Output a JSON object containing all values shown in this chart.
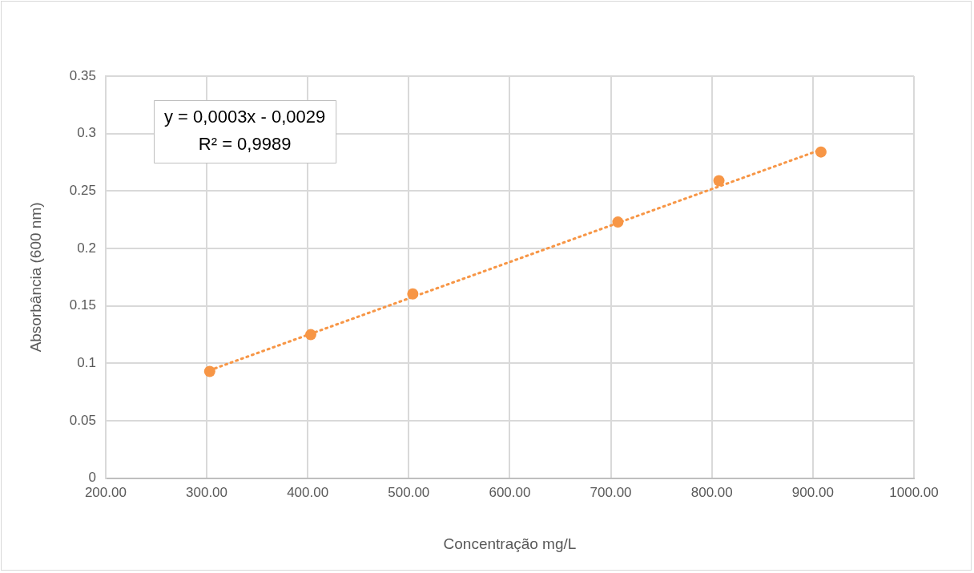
{
  "chart_data": {
    "type": "scatter",
    "xlabel": "Concentração mg/L",
    "ylabel": "Absorbância (600 nm)",
    "series": [
      {
        "type": "scatter",
        "color": "#f79646",
        "x": [
          303,
          403,
          504,
          707,
          807,
          908
        ],
        "values": [
          0.093,
          0.125,
          0.1605,
          0.223,
          0.259,
          0.284
        ],
        "marker": "circle"
      },
      {
        "type": "line",
        "color": "#f79646",
        "x": [
          303,
          908
        ],
        "values": [
          0.094,
          0.286
        ],
        "line_style": "dotted",
        "marker": "none"
      }
    ],
    "xlim": [
      200,
      1000
    ],
    "xticks": [
      {
        "value": 200,
        "label": "200.00"
      },
      {
        "value": 300,
        "label": "300.00"
      },
      {
        "value": 400,
        "label": "400.00"
      },
      {
        "value": 500,
        "label": "500.00"
      },
      {
        "value": 600,
        "label": "600.00"
      },
      {
        "value": 700,
        "label": "700.00"
      },
      {
        "value": 800,
        "label": "800.00"
      },
      {
        "value": 900,
        "label": "900.00"
      },
      {
        "value": 1000,
        "label": "1000.00"
      }
    ],
    "ylim": [
      0,
      0.35
    ],
    "yticks": [
      0,
      0.05,
      0.1,
      0.15,
      0.2,
      0.25,
      0.3,
      0.35
    ],
    "grid": true,
    "legend": false,
    "annotations": [
      "y = 0,0003x - 0,0029",
      "R² = 0,9989"
    ]
  }
}
